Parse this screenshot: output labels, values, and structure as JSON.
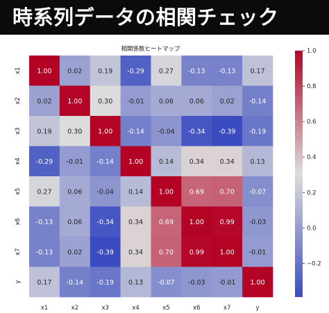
{
  "page_title": "時系列データの相関チェック",
  "chart_data": {
    "type": "heatmap",
    "title": "相関係数ヒートマップ",
    "xlabel": "",
    "ylabel": "",
    "x_categories": [
      "x1",
      "x2",
      "x3",
      "x4",
      "x5",
      "x6",
      "x7",
      "y"
    ],
    "y_categories": [
      "x1",
      "x2",
      "x3",
      "x4",
      "x5",
      "x6",
      "x7",
      "y"
    ],
    "values": [
      [
        1.0,
        0.02,
        0.19,
        -0.29,
        0.27,
        -0.13,
        -0.13,
        0.17
      ],
      [
        0.02,
        1.0,
        0.3,
        -0.01,
        0.06,
        0.06,
        0.02,
        -0.14
      ],
      [
        0.19,
        0.3,
        1.0,
        -0.14,
        -0.04,
        -0.34,
        -0.39,
        -0.19
      ],
      [
        -0.29,
        -0.01,
        -0.14,
        1.0,
        0.14,
        0.34,
        0.34,
        0.13
      ],
      [
        0.27,
        0.06,
        -0.04,
        0.14,
        1.0,
        0.69,
        0.7,
        -0.07
      ],
      [
        -0.13,
        0.06,
        -0.34,
        0.34,
        0.69,
        1.0,
        0.99,
        -0.03
      ],
      [
        -0.13,
        0.02,
        -0.39,
        0.34,
        0.7,
        0.99,
        1.0,
        -0.01
      ],
      [
        0.17,
        -0.14,
        -0.19,
        0.13,
        -0.07,
        -0.03,
        -0.01,
        1.0
      ]
    ],
    "value_labels": [
      [
        "1.00",
        "0.02",
        "0.19",
        "-0.29",
        "0.27",
        "-0.13",
        "-0.13",
        "0.17"
      ],
      [
        "0.02",
        "1.00",
        "0.30",
        "-0.01",
        "0.06",
        "0.06",
        "0.02",
        "-0.14"
      ],
      [
        "0.19",
        "0.30",
        "1.00",
        "-0.14",
        "-0.04",
        "-0.34",
        "-0.39",
        "-0.19"
      ],
      [
        "-0.29",
        "-0.01",
        "-0.14",
        "1.00",
        "0.14",
        "0.34",
        "0.34",
        "0.13"
      ],
      [
        "0.27",
        "0.06",
        "-0.04",
        "0.14",
        "1.00",
        "0.69",
        "0.70",
        "-0.07"
      ],
      [
        "-0.13",
        "0.06",
        "-0.34",
        "0.34",
        "0.69",
        "1.00",
        "0.99",
        "-0.03"
      ],
      [
        "-0.13",
        "0.02",
        "-0.39",
        "0.34",
        "0.70",
        "0.99",
        "1.00",
        "-0.01"
      ],
      [
        "0.17",
        "-0.14",
        "-0.19",
        "0.13",
        "-0.07",
        "-0.03",
        "-0.01",
        "1.00"
      ]
    ],
    "colormap": "coolwarm",
    "colorbar": {
      "range": [
        -0.39,
        1.0
      ],
      "ticks": [
        -0.2,
        0.0,
        0.2,
        0.4,
        0.6,
        0.8,
        1.0
      ],
      "tick_labels": [
        "−0.2",
        "0.0",
        "0.2",
        "0.4",
        "0.6",
        "0.8",
        "1.0"
      ],
      "placement": "right"
    },
    "colors": {
      "low": "#3b4cc0",
      "mid": "#dddddd",
      "high": "#b40426"
    },
    "grid": false
  }
}
